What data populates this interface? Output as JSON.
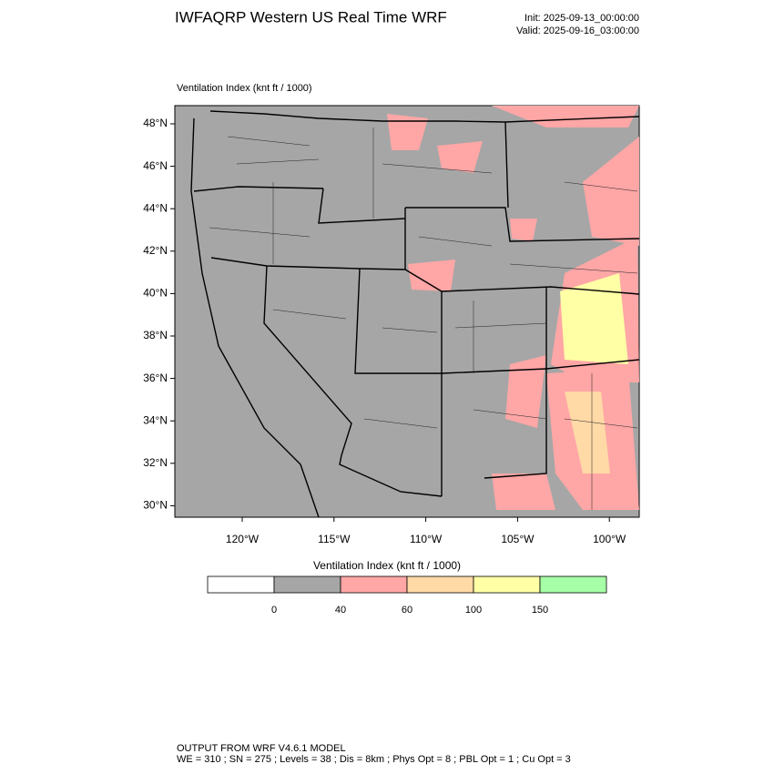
{
  "header": {
    "title": "IWFAQRP Western US Real Time WRF",
    "init": "Init: 2025-09-13_00:00:00",
    "valid": "Valid: 2025-09-16_03:00:00"
  },
  "map": {
    "field_label": "Ventilation Index   (knt ft / 1000)",
    "lat_ticks": [
      "48°N",
      "46°N",
      "44°N",
      "42°N",
      "40°N",
      "38°N",
      "36°N",
      "34°N",
      "32°N",
      "30°N"
    ],
    "lon_ticks": [
      "120°W",
      "115°W",
      "110°W",
      "105°W",
      "100°W"
    ]
  },
  "colorbar": {
    "title": "Ventilation Index   (knt ft / 1000)",
    "colors": [
      "#ffffff",
      "#a6a6a6",
      "#ffa6a6",
      "#ffd9a6",
      "#ffffa6",
      "#a6ffa6"
    ],
    "levels": [
      0,
      40,
      60,
      100,
      150
    ]
  },
  "footer": {
    "line1": "OUTPUT FROM WRF V4.6.1 MODEL",
    "line2": "WE = 310 ; SN = 275 ; Levels = 38 ; Dis = 8km ; Phys Opt = 8 ; PBL Opt = 1 ; Cu Opt = 3"
  }
}
